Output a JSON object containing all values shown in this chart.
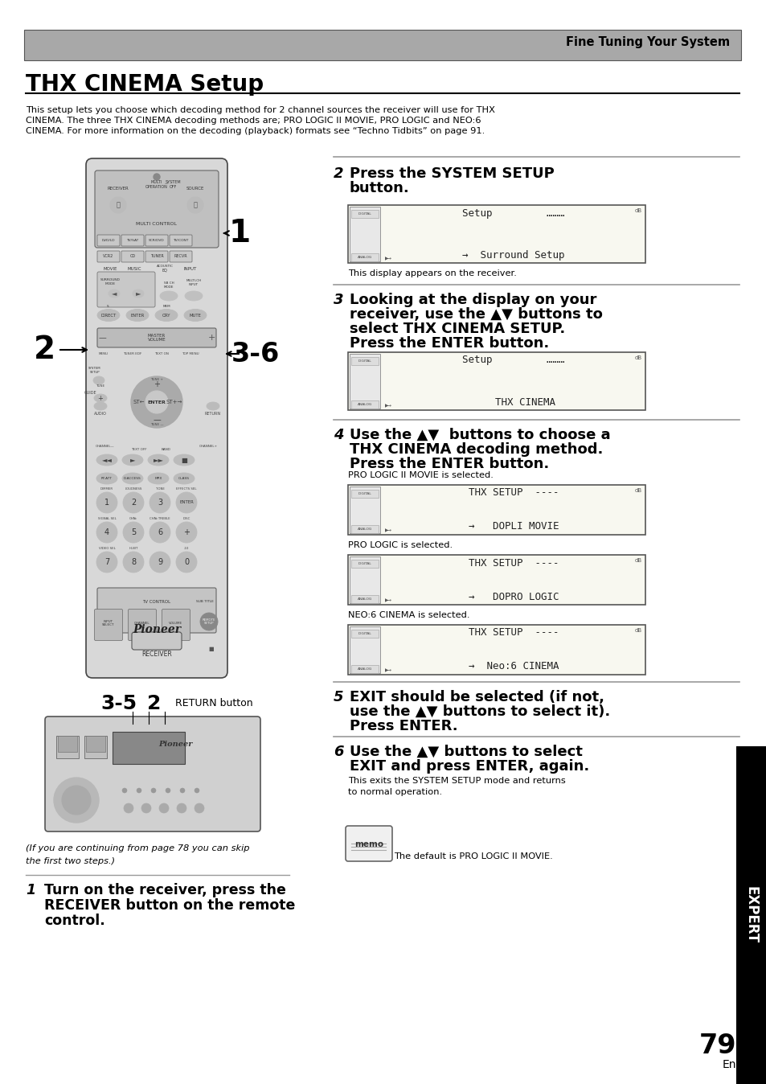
{
  "page_bg": "#ffffff",
  "header_bg": "#a8a8a8",
  "header_text": "Fine Tuning Your System",
  "title": "THX CINEMA Setup",
  "intro_text": "This setup lets you choose which decoding method for 2 channel sources the receiver will use for THX\nCINEMA. The three THX CINEMA decoding methods are; PRO LOGIC II MOVIE, PRO LOGIC and NEO:6\nCINEMA. For more information on the decoding (playback) formats see “Techno Tidbits” on page 91.",
  "step2_line1": "Press the SYSTEM SETUP",
  "step2_line2": "button.",
  "step2_caption": "This display appears on the receiver.",
  "step3_line1": "Looking at the display on your",
  "step3_line2": "receiver, use the ▲▼ buttons to",
  "step3_line3": "select THX CINEMA SETUP.",
  "step3_line4": "Press the ENTER button.",
  "step4_line1": "Use the ▲▼  buttons to choose a",
  "step4_line2": "THX CINEMA decoding method.",
  "step4_line3": "Press the ENTER button.",
  "step4_sub1": "PRO LOGIC II MOVIE is selected.",
  "step4_sub2": "PRO LOGIC is selected.",
  "step4_sub3": "NEO:6 CINEMA is selected.",
  "step5_line1": "EXIT should be selected (if not,",
  "step5_line2": "use the ▲▼ buttons to select it).",
  "step5_line3": "Press ENTER.",
  "step6_line1": "Use the ▲▼ buttons to select",
  "step6_line2": "EXIT and press ENTER, again.",
  "step6_text": "This exits the SYSTEM SETUP mode and returns\nto normal operation.",
  "memo_text": "The default is PRO LOGIC II MOVIE.",
  "label1": "1",
  "label2": "2",
  "label36": "3-6",
  "label35": "3-5",
  "label35b": "2",
  "label35c": "RETURN button",
  "step1_line1": "Turn on the receiver, press the",
  "step1_line2": "RECEIVER button on the remote",
  "step1_line3": "control.",
  "footnote_line1": "(If you are continuing from page 78 you can skip",
  "footnote_line2": "the first two steps.)",
  "page_num": "79",
  "page_en": "En",
  "expert_label": "EXPERT",
  "divider_color": "#999999"
}
